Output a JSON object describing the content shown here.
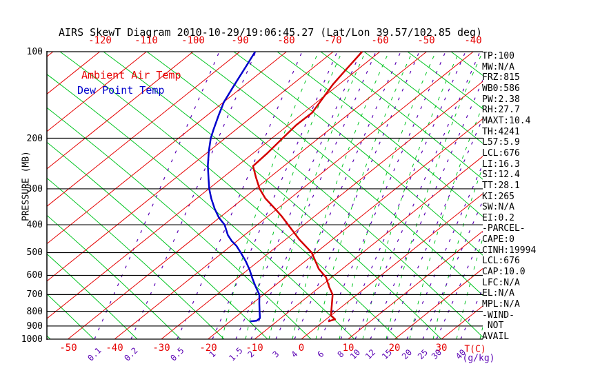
{
  "title": "AIRS SkewT Diagram 2010-10-29/19:06:45.27 (Lat/Lon 39.57/102.85 deg)",
  "legend": {
    "ambient": "Ambient Air Temp",
    "dewpoint": "Dew Point Temp"
  },
  "axes": {
    "pressure_label": "PRESSURE (MB)",
    "pressure_ticks": [
      100,
      200,
      300,
      400,
      500,
      600,
      700,
      800,
      900,
      1000
    ],
    "top_temp_ticks": [
      -120,
      -110,
      -100,
      -90,
      -80,
      -70,
      -60,
      -50,
      -40
    ],
    "bottom_temp_ticks": [
      -50,
      -40,
      -30,
      -20,
      -10,
      0,
      10,
      20,
      30
    ],
    "temp_unit": "T(C)",
    "mixing_ratio_ticks": [
      0.1,
      0.2,
      0.5,
      1,
      1.5,
      2,
      3,
      4,
      6,
      8,
      10,
      12,
      15,
      20,
      25,
      30,
      40
    ],
    "mixing_unit": "(g/kg)"
  },
  "stats": [
    "TP:100",
    "MW:N/A",
    "FRZ:815",
    "WB0:586",
    "PW:2.38",
    "RH:27.7",
    "MAXT:10.4",
    "TH:4241",
    "L57:5.9",
    "LCL:676",
    "LI:16.3",
    "SI:12.4",
    "TT:28.1",
    "KI:265",
    "SW:N/A",
    "EI:0.2",
    "-PARCEL-",
    "CAPE:0",
    "CINH:19994",
    "LCL:676",
    "CAP:10.0",
    "LFC:N/A",
    "EL:N/A",
    "MPL:N/A",
    "-WIND-",
    " NOT",
    "AVAIL"
  ],
  "colors": {
    "isotherm_red": "#e60000",
    "adiabat_green": "#00c420",
    "mixing_purple": "#5a00b4",
    "ambient_curve": "#d40000",
    "dewpoint_curve": "#0000cc",
    "grid_black": "#000000"
  },
  "chart_data": {
    "type": "line",
    "title": "AIRS SkewT Diagram 2010-10-29/19:06:45.27 (Lat/Lon 39.57/102.85 deg)",
    "xlabel": "T(C)",
    "ylabel": "PRESSURE (MB)",
    "y_scale": "log",
    "y_range_mb": [
      100,
      1000
    ],
    "x_range_bottom_c": [
      -55,
      40
    ],
    "skew": "isotherms skewed right 45deg",
    "top_axis_ticks_c": [
      -120,
      -110,
      -100,
      -90,
      -80,
      -70,
      -60,
      -50,
      -40
    ],
    "bottom_axis_ticks_c": [
      -50,
      -40,
      -30,
      -20,
      -10,
      0,
      10,
      20,
      30
    ],
    "mixing_ratio_lines_g_kg": [
      0.1,
      0.2,
      0.5,
      1,
      1.5,
      2,
      3,
      4,
      6,
      8,
      10,
      12,
      15,
      20,
      25,
      30,
      40
    ],
    "series": [
      {
        "name": "Ambient Air Temp",
        "points_pressure_mb_temp_c": [
          [
            100,
            -63.8
          ],
          [
            115,
            -62.5
          ],
          [
            130,
            -61.3
          ],
          [
            163,
            -58.2
          ],
          [
            180,
            -58.3
          ],
          [
            200,
            -57.7
          ],
          [
            225,
            -57.0
          ],
          [
            250,
            -56.6
          ],
          [
            274,
            -52.9
          ],
          [
            300,
            -49.1
          ],
          [
            324,
            -45.3
          ],
          [
            350,
            -40.8
          ],
          [
            372,
            -37.3
          ],
          [
            400,
            -33.4
          ],
          [
            450,
            -27.1
          ],
          [
            500,
            -20.9
          ],
          [
            569,
            -15.1
          ],
          [
            610,
            -11.2
          ],
          [
            660,
            -7.9
          ],
          [
            700,
            -5.2
          ],
          [
            778,
            -1.9
          ],
          [
            827,
            0.0
          ],
          [
            853,
            1.9
          ],
          [
            867,
            1.0
          ]
        ]
      },
      {
        "name": "Dew Point Temp",
        "points_pressure_mb_temp_c": [
          [
            100,
            -86.7
          ],
          [
            112,
            -84.8
          ],
          [
            125,
            -83.0
          ],
          [
            135,
            -81.7
          ],
          [
            150,
            -79.9
          ],
          [
            166,
            -77.6
          ],
          [
            186,
            -74.9
          ],
          [
            200,
            -73.1
          ],
          [
            223,
            -69.9
          ],
          [
            249,
            -66.4
          ],
          [
            277,
            -62.7
          ],
          [
            300,
            -59.9
          ],
          [
            324,
            -56.9
          ],
          [
            352,
            -53.4
          ],
          [
            378,
            -50.1
          ],
          [
            400,
            -47.0
          ],
          [
            434,
            -43.6
          ],
          [
            456,
            -41.1
          ],
          [
            474,
            -38.8
          ],
          [
            500,
            -36.1
          ],
          [
            535,
            -32.8
          ],
          [
            574,
            -29.6
          ],
          [
            615,
            -26.7
          ],
          [
            657,
            -23.8
          ],
          [
            700,
            -20.9
          ],
          [
            750,
            -18.6
          ],
          [
            800,
            -16.4
          ],
          [
            845,
            -14.5
          ],
          [
            863,
            -14.5
          ],
          [
            867,
            -15.7
          ]
        ]
      }
    ]
  }
}
